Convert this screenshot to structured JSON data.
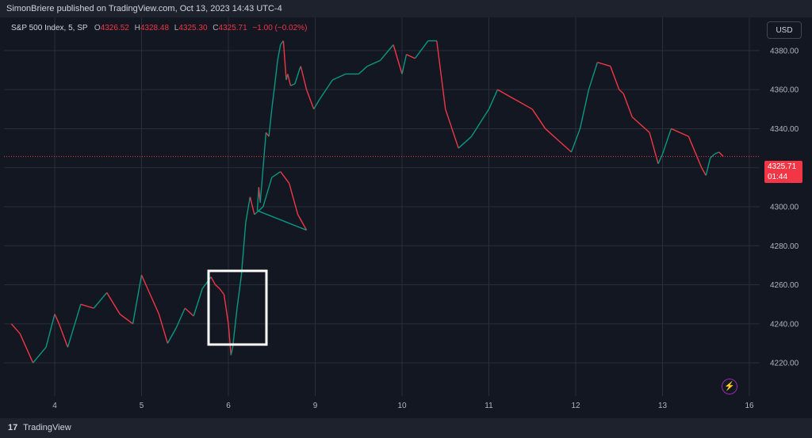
{
  "header": {
    "published_text": "SimonBriere published on TradingView.com, Oct 13, 2023 14:43 UTC-4"
  },
  "legend": {
    "symbol": "S&P 500 Index, 5, SP",
    "o_key": "O",
    "o_val": "4326.52",
    "h_key": "H",
    "h_val": "4328.48",
    "l_key": "L",
    "l_val": "4325.30",
    "c_key": "C",
    "c_val": "4325.71",
    "change": "−1.00 (−0.02%)"
  },
  "currency_button": "USD",
  "price_tag": {
    "price": "4325.71",
    "countdown": "01:44"
  },
  "footer": {
    "brand": "TradingView",
    "logo": "17"
  },
  "colors": {
    "up": "#089981",
    "down": "#f23645",
    "grid": "#2a2e39",
    "text": "#b2b5be",
    "background": "#131722"
  },
  "chart_data": {
    "type": "line",
    "title": "S&P 500 Index, 5, SP",
    "x_ticks": [
      "4",
      "5",
      "6",
      "9",
      "10",
      "11",
      "12",
      "13",
      "16"
    ],
    "y_ticks": [
      4220,
      4240,
      4260,
      4280,
      4300,
      4320,
      4340,
      4360,
      4380
    ],
    "ylim": [
      4203,
      4397
    ],
    "grid": true,
    "last_price": 4325.71,
    "x": [
      3.5,
      3.6,
      3.75,
      3.9,
      4.0,
      4.05,
      4.15,
      4.3,
      4.45,
      4.6,
      4.75,
      4.9,
      5.0,
      5.1,
      5.2,
      5.3,
      5.4,
      5.5,
      5.6,
      5.7,
      5.8,
      5.85,
      5.9,
      5.95,
      6.0,
      6.03,
      6.05,
      6.1,
      6.15,
      6.2,
      6.25,
      6.3,
      6.4,
      6.5,
      6.6,
      6.7,
      6.8,
      6.9,
      7.0,
      7.05,
      7.1,
      7.2,
      7.3,
      7.4,
      7.5,
      7.6,
      7.7,
      7.8,
      7.9,
      8.0,
      8.05,
      8.15,
      8.3,
      8.45,
      8.5,
      8.6,
      8.7,
      8.8,
      8.85,
      8.95,
      9.05,
      9.2,
      9.35,
      9.5,
      9.6,
      9.75,
      9.9,
      10.0,
      10.05,
      10.15,
      10.3,
      10.4,
      10.5,
      10.65,
      10.8,
      11.0,
      11.1,
      11.3,
      11.5,
      11.65,
      11.8,
      11.95,
      12.05,
      12.15,
      12.25,
      12.4,
      12.5,
      12.55,
      12.65,
      12.85,
      12.95,
      13.0,
      13.1,
      13.2,
      13.3,
      13.45,
      13.5,
      13.55,
      13.6,
      13.65,
      13.7
    ],
    "values": [
      4240,
      4235,
      4220,
      4228,
      4245,
      4240,
      4228,
      4250,
      4248,
      4256,
      4245,
      4240,
      4265,
      4255,
      4245,
      4230,
      4238,
      4248,
      4244,
      4258,
      4264,
      4260,
      4258,
      4255,
      4240,
      4224,
      4228,
      4248,
      4265,
      4292,
      4305,
      4296,
      4300,
      4315,
      4318,
      4312,
      4296,
      4288,
      4298,
      4310,
      4302,
      4320,
      4338,
      4336,
      4350,
      4362,
      4375,
      4383,
      4385,
      4365,
      4368,
      4362,
      4363,
      4370,
      4372,
      4366,
      4360,
      4356,
      4354,
      4350,
      4355,
      4365,
      4368,
      4368,
      4372,
      4375,
      4383,
      4368,
      4378,
      4376,
      4385,
      4385,
      4350,
      4330,
      4336,
      4350,
      4360,
      4355,
      4350,
      4340,
      4334,
      4328,
      4340,
      4360,
      4374,
      4372,
      4360,
      4358,
      4346,
      4338,
      4322,
      4327,
      4340,
      4338,
      4336,
      4320,
      4316,
      4325,
      4327,
      4328,
      4325.71
    ]
  }
}
